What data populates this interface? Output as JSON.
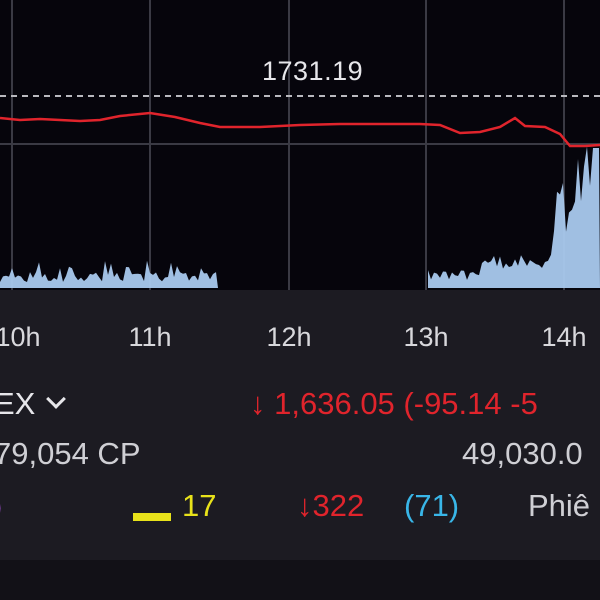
{
  "chart": {
    "reference_value": "1731.19",
    "time_ticks": [
      "10h",
      "11h",
      "12h",
      "13h",
      "14h"
    ],
    "colors": {
      "price_line": "#e0242c",
      "volume_area": "#a9c9ee",
      "reference_line": "#b9b9bf",
      "grid": "#3a3a44"
    }
  },
  "index": {
    "name_partial": "EX",
    "volume_partial": "79,054 CP",
    "value_partial": "49,030.0",
    "arrow": "↓",
    "price": "1,636.05",
    "change_partial": "(-95.14 -5",
    "unchanged_count": "17",
    "decliners_count": "322",
    "floor_count": "(71)",
    "session_partial": "Phiê",
    "ceiling_partial": ")"
  },
  "chart_data": {
    "type": "line",
    "x_ticks": [
      "10h",
      "11h",
      "12h",
      "13h",
      "14h"
    ],
    "reference_line": 1731.19,
    "series": [
      {
        "values": [
          1731,
          1731,
          1731,
          1731,
          1731,
          1731,
          1731,
          1731,
          1730,
          1730,
          1730,
          1730,
          1730,
          1729,
          1727,
          1704
        ]
      }
    ]
  }
}
